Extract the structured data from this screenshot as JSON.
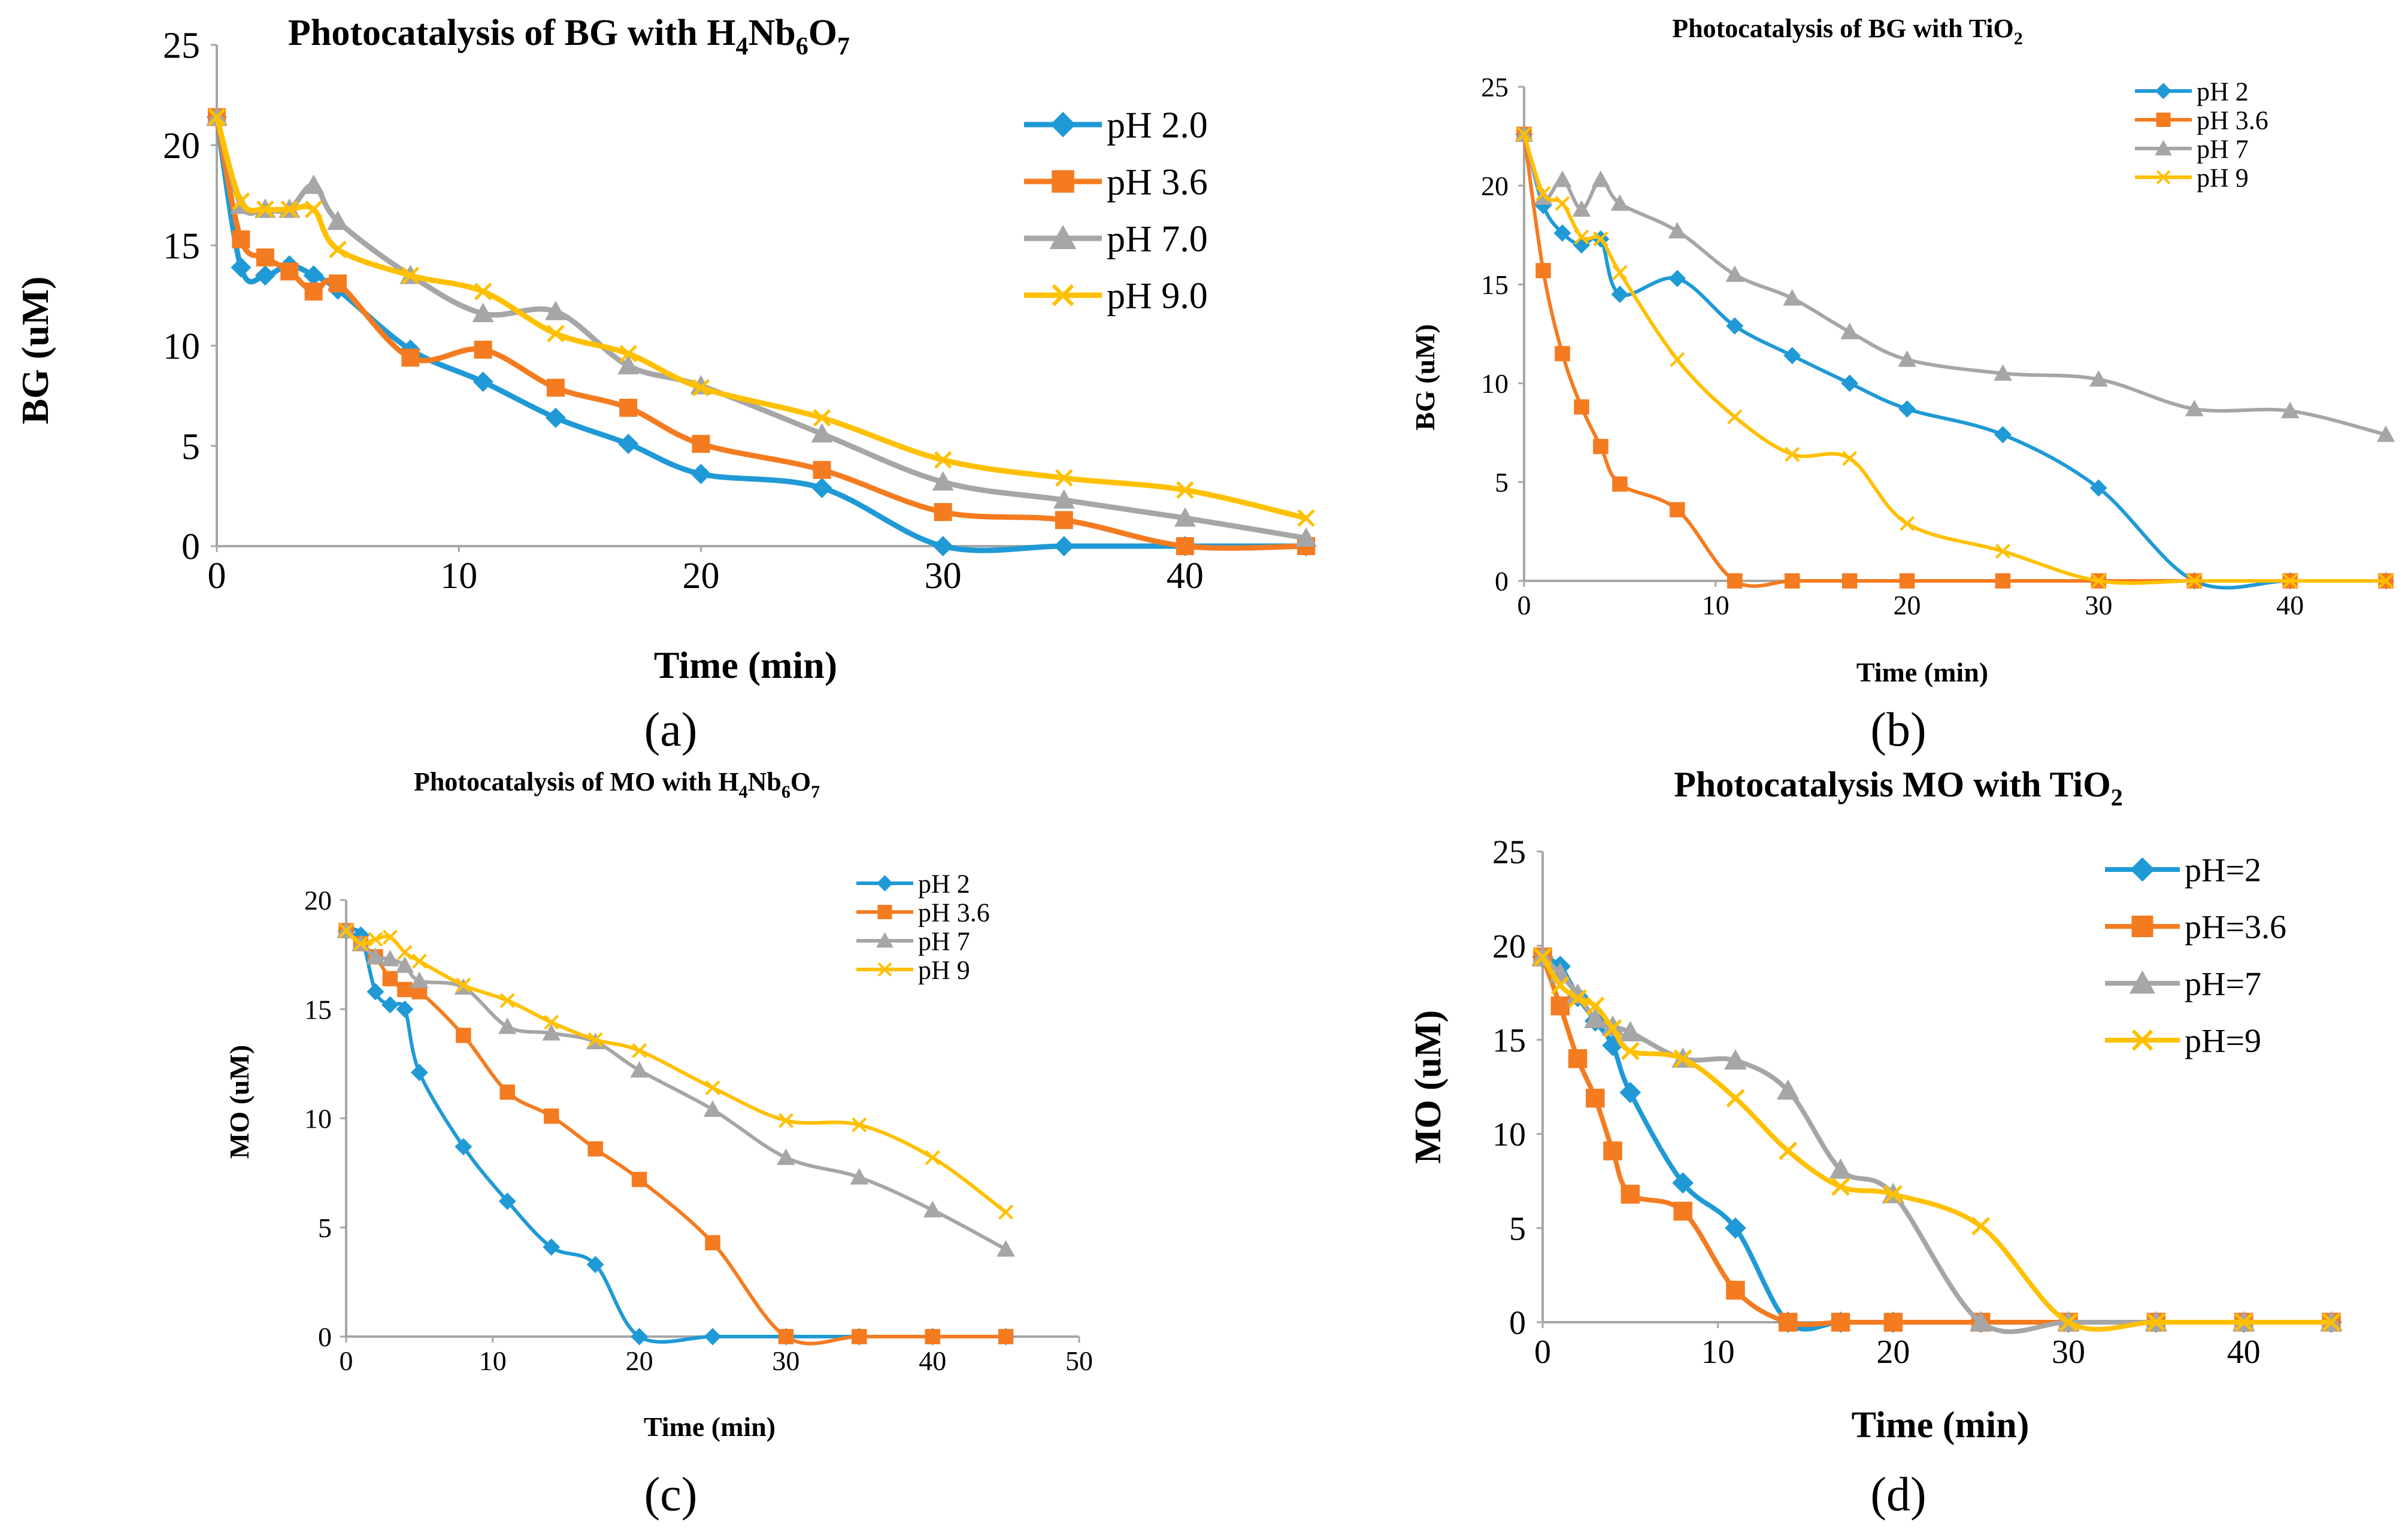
{
  "colors": {
    "series": [
      "#1f9ad6",
      "#f47b20",
      "#a6a6a6",
      "#ffc000"
    ],
    "axis": "#a6a6a6",
    "text": "#000000"
  },
  "chart_data": [
    {
      "panel": "(a)",
      "type": "line",
      "title": "Photocatalysis of BG with H4Nb6O7",
      "title_parts": {
        "pre": "Photocatalysis of BG with H",
        "s1": "4",
        "m1": "Nb",
        "s2": "6",
        "m2": "O",
        "s3": "7"
      },
      "xlabel": "Time (min)",
      "ylabel": "BG (uM)",
      "xlim": [
        0,
        45
      ],
      "ylim": [
        0,
        25
      ],
      "xticks": [
        "0",
        "10",
        "20",
        "30",
        "40"
      ],
      "yticks": [
        "0",
        "5",
        "10",
        "15",
        "20",
        "25"
      ],
      "legend": [
        "pH 2.0",
        "pH 3.6",
        "pH 7.0",
        "pH 9.0"
      ],
      "series": [
        {
          "name": "pH 2.0",
          "marker": "diamond",
          "x": [
            0,
            1,
            2,
            3,
            4,
            5,
            8,
            11,
            14,
            17,
            20,
            25,
            30,
            35,
            40,
            45
          ],
          "y": [
            21.4,
            13.9,
            13.5,
            14.0,
            13.5,
            12.8,
            9.8,
            8.2,
            6.4,
            5.1,
            3.6,
            2.9,
            0.0,
            0.0,
            0.0,
            0.0
          ]
        },
        {
          "name": "pH 3.6",
          "marker": "square",
          "x": [
            0,
            1,
            2,
            3,
            4,
            5,
            8,
            11,
            14,
            17,
            20,
            25,
            30,
            35,
            40,
            45
          ],
          "y": [
            21.4,
            15.3,
            14.4,
            13.7,
            12.7,
            13.1,
            9.4,
            9.8,
            7.9,
            6.9,
            5.1,
            3.8,
            1.7,
            1.3,
            0.0,
            0.0
          ]
        },
        {
          "name": "pH 7.0",
          "marker": "triangle",
          "x": [
            0,
            1,
            2,
            3,
            4,
            5,
            8,
            11,
            14,
            17,
            20,
            25,
            30,
            35,
            40,
            45
          ],
          "y": [
            21.4,
            17.0,
            16.8,
            16.8,
            18.0,
            16.2,
            13.5,
            11.6,
            11.7,
            9.0,
            8.0,
            5.6,
            3.2,
            2.3,
            1.4,
            0.4
          ]
        },
        {
          "name": "pH 9.0",
          "marker": "x",
          "x": [
            0,
            1,
            2,
            3,
            4,
            5,
            8,
            11,
            14,
            17,
            20,
            25,
            30,
            35,
            40,
            45
          ],
          "y": [
            21.4,
            17.2,
            16.8,
            16.8,
            16.8,
            14.8,
            13.5,
            12.7,
            10.6,
            9.6,
            7.9,
            6.4,
            4.3,
            3.4,
            2.8,
            1.4
          ]
        }
      ]
    },
    {
      "panel": "(b)",
      "type": "line",
      "title": "Photocatalysis of BG with TiO2",
      "title_parts": {
        "pre": "Photocatalysis of BG with TiO",
        "s1": "2"
      },
      "xlabel": "Time (min)",
      "ylabel": "BG  (uM)",
      "xlim": [
        0,
        45
      ],
      "ylim": [
        0,
        25
      ],
      "xticks": [
        "0",
        "10",
        "20",
        "30",
        "40"
      ],
      "yticks": [
        "0",
        "5",
        "10",
        "15",
        "20",
        "25"
      ],
      "legend": [
        "pH 2",
        "pH 3.6",
        "pH 7",
        "pH 9"
      ],
      "series": [
        {
          "name": "pH 2",
          "marker": "diamond",
          "x": [
            0,
            1,
            2,
            3,
            4,
            5,
            8,
            11,
            14,
            17,
            20,
            25,
            30,
            35,
            40,
            45
          ],
          "y": [
            22.6,
            19.0,
            17.6,
            17.0,
            17.3,
            14.5,
            15.3,
            12.9,
            11.4,
            10.0,
            8.7,
            7.4,
            4.7,
            0.0,
            0.0,
            0.0
          ]
        },
        {
          "name": "pH 3.6",
          "marker": "square",
          "x": [
            0,
            1,
            2,
            3,
            4,
            5,
            8,
            11,
            14,
            17,
            20,
            25,
            30,
            35,
            40,
            45
          ],
          "y": [
            22.6,
            15.7,
            11.5,
            8.8,
            6.8,
            4.9,
            3.6,
            0.0,
            0.0,
            0.0,
            0.0,
            0.0,
            0.0,
            0.0,
            0.0,
            0.0
          ]
        },
        {
          "name": "pH 7",
          "marker": "triangle",
          "x": [
            0,
            1,
            2,
            3,
            4,
            5,
            8,
            11,
            14,
            17,
            20,
            25,
            30,
            35,
            40,
            45
          ],
          "y": [
            22.6,
            19.4,
            20.3,
            18.8,
            20.3,
            19.1,
            17.7,
            15.5,
            14.3,
            12.6,
            11.2,
            10.5,
            10.2,
            8.7,
            8.6,
            7.4
          ]
        },
        {
          "name": "pH 9",
          "marker": "x",
          "x": [
            0,
            1,
            2,
            3,
            4,
            5,
            8,
            11,
            14,
            17,
            20,
            25,
            30,
            35,
            40,
            45
          ],
          "y": [
            22.6,
            19.6,
            19.1,
            17.4,
            17.3,
            15.6,
            11.2,
            8.3,
            6.4,
            6.2,
            2.9,
            1.5,
            0.0,
            0.0,
            0.0,
            0.0
          ]
        }
      ]
    },
    {
      "panel": "(c)",
      "type": "line",
      "title": "Photocatalysis of MO with H4Nb6O7",
      "title_parts": {
        "pre": "Photocatalysis of MO with H",
        "s1": "4",
        "m1": "Nb",
        "s2": "6",
        "m2": "O",
        "s3": "7"
      },
      "xlabel": "Time (min)",
      "ylabel": "MO (uM)",
      "xlim": [
        0,
        50
      ],
      "ylim": [
        0,
        20
      ],
      "xticks": [
        "0",
        "10",
        "20",
        "30",
        "40",
        "50"
      ],
      "yticks": [
        "0",
        "5",
        "10",
        "15",
        "20"
      ],
      "legend": [
        "pH 2",
        "pH 3.6",
        "pH 7",
        "pH 9"
      ],
      "series": [
        {
          "name": "pH 2",
          "marker": "diamond",
          "x": [
            0,
            1,
            2,
            3,
            4,
            5,
            8,
            11,
            14,
            17,
            20,
            25,
            30,
            35,
            40,
            45
          ],
          "y": [
            18.6,
            18.4,
            15.8,
            15.2,
            15.0,
            12.1,
            8.7,
            6.2,
            4.1,
            3.3,
            0.0,
            0.0,
            0.0,
            0.0,
            0.0,
            0.0
          ]
        },
        {
          "name": "pH 3.6",
          "marker": "square",
          "x": [
            0,
            1,
            2,
            3,
            4,
            5,
            8,
            11,
            14,
            17,
            20,
            25,
            30,
            35,
            40,
            45
          ],
          "y": [
            18.6,
            18.0,
            17.4,
            16.4,
            15.9,
            15.8,
            13.8,
            11.2,
            10.1,
            8.6,
            7.2,
            4.3,
            0.0,
            0.0,
            0.0,
            0.0
          ]
        },
        {
          "name": "pH 7",
          "marker": "triangle",
          "x": [
            0,
            1,
            2,
            3,
            4,
            5,
            8,
            11,
            14,
            17,
            20,
            25,
            30,
            35,
            40,
            45
          ],
          "y": [
            18.6,
            18.0,
            17.4,
            17.3,
            17.0,
            16.3,
            16.0,
            14.2,
            13.9,
            13.5,
            12.2,
            10.4,
            8.2,
            7.3,
            5.8,
            4.0
          ]
        },
        {
          "name": "pH 9",
          "marker": "x",
          "x": [
            0,
            1,
            2,
            3,
            4,
            5,
            8,
            11,
            14,
            17,
            20,
            25,
            30,
            35,
            40,
            45
          ],
          "y": [
            18.6,
            18.0,
            18.2,
            18.3,
            17.6,
            17.2,
            16.1,
            15.4,
            14.4,
            13.6,
            13.1,
            11.4,
            9.9,
            9.7,
            8.2,
            5.7
          ]
        }
      ]
    },
    {
      "panel": "(d)",
      "type": "line",
      "title": "Photocatalysis MO with TiO2",
      "title_parts": {
        "pre": "Photocatalysis MO with TiO",
        "s1": "2"
      },
      "xlabel": "Time (min)",
      "ylabel": "MO (uM)",
      "xlim": [
        0,
        45
      ],
      "ylim": [
        0,
        25
      ],
      "xticks": [
        "0",
        "10",
        "20",
        "30",
        "40"
      ],
      "yticks": [
        "0",
        "5",
        "10",
        "15",
        "20",
        "25"
      ],
      "legend": [
        "pH=2",
        "pH=3.6",
        "pH=7",
        "pH=9"
      ],
      "series": [
        {
          "name": "pH=2",
          "marker": "diamond",
          "x": [
            0,
            1,
            2,
            3,
            4,
            5,
            8,
            11,
            14,
            17,
            20,
            25,
            30,
            35,
            40,
            45
          ],
          "y": [
            19.4,
            18.9,
            17.3,
            16.0,
            14.7,
            12.2,
            7.4,
            5.0,
            0.0,
            0.0,
            0.0,
            0.0,
            0.0,
            0.0,
            0.0,
            0.0
          ]
        },
        {
          "name": "pH=3.6",
          "marker": "square",
          "x": [
            0,
            1,
            2,
            3,
            4,
            5,
            8,
            11,
            14,
            17,
            20,
            25,
            30,
            35,
            40,
            45
          ],
          "y": [
            19.4,
            16.8,
            14.0,
            11.9,
            9.1,
            6.8,
            5.9,
            1.7,
            0.0,
            0.0,
            0.0,
            0.0,
            0.0,
            0.0,
            0.0,
            0.0
          ]
        },
        {
          "name": "pH=7",
          "marker": "triangle",
          "x": [
            0,
            1,
            2,
            3,
            4,
            5,
            8,
            11,
            14,
            17,
            20,
            25,
            30,
            35,
            40,
            45
          ],
          "y": [
            19.4,
            18.5,
            17.4,
            16.1,
            15.7,
            15.4,
            14.0,
            13.9,
            12.3,
            8.1,
            6.8,
            0.0,
            0.0,
            0.0,
            0.0,
            0.0
          ]
        },
        {
          "name": "pH=9",
          "marker": "x",
          "x": [
            0,
            1,
            2,
            3,
            4,
            5,
            8,
            11,
            14,
            17,
            20,
            25,
            30,
            35,
            40,
            45
          ],
          "y": [
            19.4,
            17.9,
            17.2,
            16.8,
            15.6,
            14.4,
            14.0,
            11.9,
            9.1,
            7.2,
            6.8,
            5.1,
            0.0,
            0.0,
            0.0,
            0.0
          ]
        }
      ]
    }
  ]
}
